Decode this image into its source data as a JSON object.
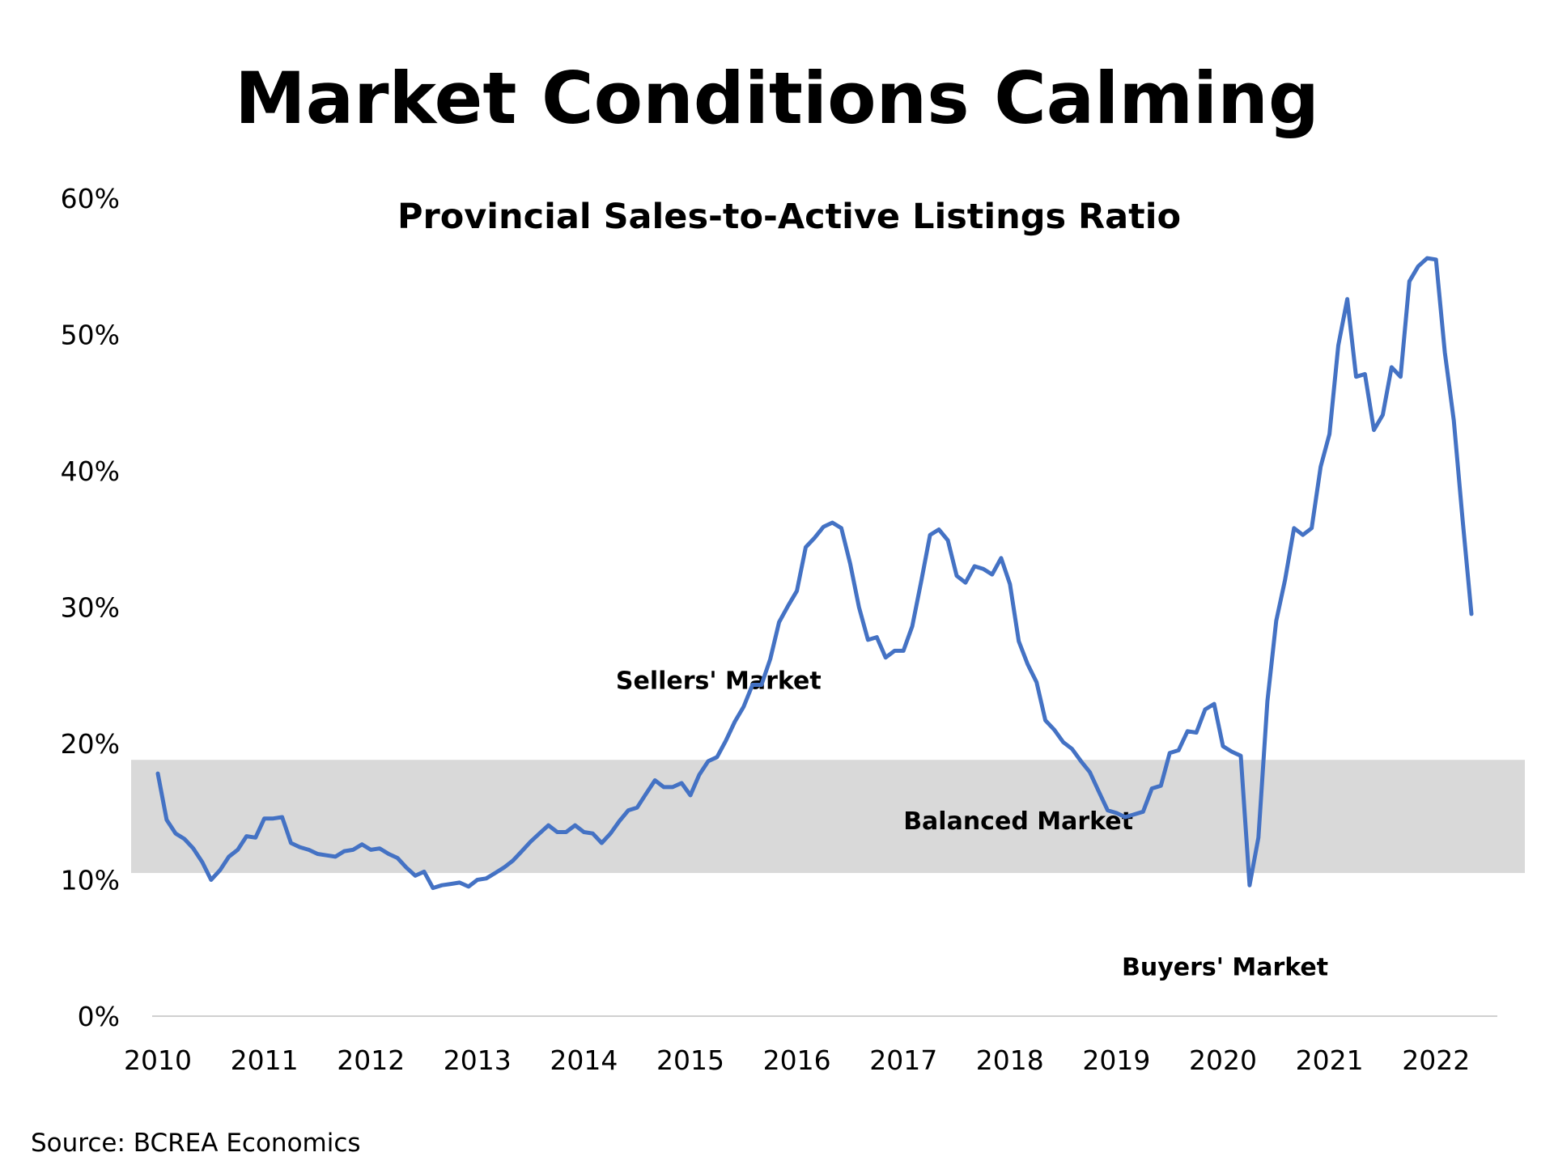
{
  "title": "Market Conditions Calming",
  "source": "Source: BCREA Economics",
  "colors": {
    "line": "#4472C4",
    "balanced_band": "#D9D9D9",
    "axis": "#D0D0D0",
    "text": "#000000"
  },
  "chart_data": {
    "type": "line",
    "title": "Provincial Sales-to-Active Listings Ratio",
    "xlabel": "",
    "ylabel": "",
    "y_ticks": [
      "0%",
      "10%",
      "20%",
      "30%",
      "40%",
      "50%",
      "60%"
    ],
    "x_ticks": [
      "2010",
      "2011",
      "2012",
      "2013",
      "2014",
      "2015",
      "2016",
      "2017",
      "2018",
      "2019",
      "2020",
      "2021",
      "2022"
    ],
    "ylim": [
      0,
      0.6
    ],
    "xlim": [
      2010,
      2022.5
    ],
    "grid": false,
    "legend": "none",
    "balanced_band": {
      "low": 0.105,
      "high": 0.188,
      "label": "Balanced Market"
    },
    "annotations": [
      {
        "text": "Sellers' Market",
        "x": 2014.3,
        "y": 0.24
      },
      {
        "text": "Balanced Market",
        "x": 2017.0,
        "y": 0.137
      },
      {
        "text": "Buyers' Market",
        "x": 2019.05,
        "y": 0.03
      }
    ],
    "series": [
      {
        "x": [
          2010.0,
          2010.083,
          2010.167,
          2010.25,
          2010.333,
          2010.417,
          2010.5,
          2010.583,
          2010.667,
          2010.75,
          2010.833,
          2010.917,
          2011.0,
          2011.083,
          2011.167,
          2011.25,
          2011.333,
          2011.417,
          2011.5,
          2011.583,
          2011.667,
          2011.75,
          2011.833,
          2011.917,
          2012.0,
          2012.083,
          2012.167,
          2012.25,
          2012.333,
          2012.417,
          2012.5,
          2012.583,
          2012.667,
          2012.75,
          2012.833,
          2012.917,
          2013.0,
          2013.083,
          2013.167,
          2013.25,
          2013.333,
          2013.417,
          2013.5,
          2013.583,
          2013.667,
          2013.75,
          2013.833,
          2013.917,
          2014.0,
          2014.083,
          2014.167,
          2014.25,
          2014.333,
          2014.417,
          2014.5,
          2014.583,
          2014.667,
          2014.75,
          2014.833,
          2014.917,
          2015.0,
          2015.083,
          2015.167,
          2015.25,
          2015.333,
          2015.417,
          2015.5,
          2015.583,
          2015.667,
          2015.75,
          2015.833,
          2015.917,
          2016.0,
          2016.083,
          2016.167,
          2016.25,
          2016.333,
          2016.417,
          2016.5,
          2016.583,
          2016.667,
          2016.75,
          2016.833,
          2016.917,
          2017.0,
          2017.083,
          2017.167,
          2017.25,
          2017.333,
          2017.417,
          2017.5,
          2017.583,
          2017.667,
          2017.75,
          2017.833,
          2017.917,
          2018.0,
          2018.083,
          2018.167,
          2018.25,
          2018.333,
          2018.417,
          2018.5,
          2018.583,
          2018.667,
          2018.75,
          2018.833,
          2018.917,
          2019.0,
          2019.083,
          2019.167,
          2019.25,
          2019.333,
          2019.417,
          2019.5,
          2019.583,
          2019.667,
          2019.75,
          2019.833,
          2019.917,
          2020.0,
          2020.083,
          2020.167,
          2020.25,
          2020.333,
          2020.417,
          2020.5,
          2020.583,
          2020.667,
          2020.75,
          2020.833,
          2020.917,
          2021.0,
          2021.083,
          2021.167,
          2021.25,
          2021.333,
          2021.417,
          2021.5,
          2021.583,
          2021.667,
          2021.75,
          2021.833,
          2021.917,
          2022.0,
          2022.083,
          2022.167,
          2022.25,
          2022.333
        ],
        "values": [
          0.178,
          0.144,
          0.134,
          0.13,
          0.123,
          0.113,
          0.1,
          0.107,
          0.117,
          0.122,
          0.132,
          0.131,
          0.145,
          0.145,
          0.146,
          0.127,
          0.124,
          0.122,
          0.119,
          0.118,
          0.117,
          0.121,
          0.122,
          0.126,
          0.122,
          0.123,
          0.119,
          0.116,
          0.109,
          0.103,
          0.106,
          0.094,
          0.096,
          0.097,
          0.098,
          0.095,
          0.1,
          0.101,
          0.105,
          0.109,
          0.114,
          0.121,
          0.128,
          0.134,
          0.14,
          0.135,
          0.135,
          0.14,
          0.135,
          0.134,
          0.127,
          0.134,
          0.143,
          0.151,
          0.153,
          0.163,
          0.173,
          0.168,
          0.168,
          0.171,
          0.162,
          0.177,
          0.187,
          0.19,
          0.202,
          0.216,
          0.227,
          0.243,
          0.243,
          0.262,
          0.289,
          0.301,
          0.312,
          0.344,
          0.351,
          0.359,
          0.362,
          0.358,
          0.332,
          0.3,
          0.276,
          0.278,
          0.263,
          0.268,
          0.268,
          0.286,
          0.319,
          0.353,
          0.357,
          0.349,
          0.323,
          0.318,
          0.33,
          0.328,
          0.324,
          0.336,
          0.317,
          0.275,
          0.258,
          0.245,
          0.217,
          0.21,
          0.201,
          0.196,
          0.187,
          0.179,
          0.165,
          0.151,
          0.149,
          0.146,
          0.148,
          0.15,
          0.167,
          0.169,
          0.193,
          0.195,
          0.209,
          0.208,
          0.225,
          0.229,
          0.198,
          0.194,
          0.191,
          0.096,
          0.131,
          0.231,
          0.29,
          0.32,
          0.358,
          0.353,
          0.358,
          0.403,
          0.427,
          0.492,
          0.526,
          0.469,
          0.471,
          0.43,
          0.441,
          0.476,
          0.469,
          0.539,
          0.55,
          0.556,
          0.555,
          0.487,
          0.437,
          0.364,
          0.295
        ]
      }
    ]
  }
}
